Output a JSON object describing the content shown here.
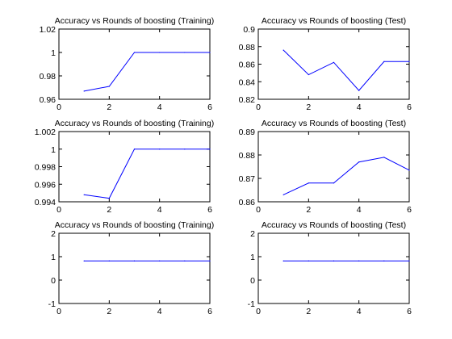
{
  "colors": {
    "line": "#0000ff",
    "axes": "#000000",
    "background": "#ffffff"
  },
  "chart_data": [
    {
      "type": "line",
      "title": "Accuracy vs Rounds of boosting (Training)",
      "x": [
        1,
        2,
        3,
        4,
        5,
        6
      ],
      "series": [
        {
          "values": [
            0.967,
            0.971,
            1.0,
            1.0,
            1.0,
            1.0
          ]
        }
      ],
      "xlim": [
        0,
        6
      ],
      "ylim": [
        0.96,
        1.02
      ],
      "xticks": [
        0,
        2,
        4,
        6
      ],
      "yticks": [
        0.96,
        0.98,
        1,
        1.02
      ],
      "xtick_labels": [
        "0",
        "2",
        "4",
        "6"
      ],
      "ytick_labels": [
        "0.96",
        "0.98",
        "1",
        "1.02"
      ],
      "grid": false
    },
    {
      "type": "line",
      "title": "Accuracy vs Rounds of boosting (Test)",
      "x": [
        1,
        2,
        3,
        4,
        5,
        6
      ],
      "series": [
        {
          "values": [
            0.876,
            0.848,
            0.862,
            0.83,
            0.863,
            0.863
          ]
        }
      ],
      "xlim": [
        0,
        6
      ],
      "ylim": [
        0.82,
        0.9
      ],
      "xticks": [
        0,
        2,
        4,
        6
      ],
      "yticks": [
        0.82,
        0.84,
        0.86,
        0.88,
        0.9
      ],
      "xtick_labels": [
        "0",
        "2",
        "4",
        "6"
      ],
      "ytick_labels": [
        "0.82",
        "0.84",
        "0.86",
        "0.88",
        "0.9"
      ],
      "grid": false
    },
    {
      "type": "line",
      "title": "Accuracy vs Rounds of boosting (Training)",
      "x": [
        1,
        2,
        3,
        4,
        5,
        6
      ],
      "series": [
        {
          "values": [
            0.9948,
            0.9944,
            1.0,
            1.0,
            1.0,
            1.0
          ]
        }
      ],
      "xlim": [
        0,
        6
      ],
      "ylim": [
        0.994,
        1.002
      ],
      "xticks": [
        0,
        2,
        4,
        6
      ],
      "yticks": [
        0.994,
        0.996,
        0.998,
        1,
        1.002
      ],
      "xtick_labels": [
        "0",
        "2",
        "4",
        "6"
      ],
      "ytick_labels": [
        "0.994",
        "0.996",
        "0.998",
        "1",
        "1.002"
      ],
      "grid": false
    },
    {
      "type": "line",
      "title": "Accuracy vs Rounds of boosting (Test)",
      "x": [
        1,
        2,
        3,
        4,
        5,
        6
      ],
      "series": [
        {
          "values": [
            0.863,
            0.868,
            0.868,
            0.877,
            0.879,
            0.8735
          ]
        }
      ],
      "xlim": [
        0,
        6
      ],
      "ylim": [
        0.86,
        0.89
      ],
      "xticks": [
        0,
        2,
        4,
        6
      ],
      "yticks": [
        0.86,
        0.87,
        0.88,
        0.89
      ],
      "xtick_labels": [
        "0",
        "2",
        "4",
        "6"
      ],
      "ytick_labels": [
        "0.86",
        "0.87",
        "0.88",
        "0.89"
      ],
      "grid": false
    },
    {
      "type": "line",
      "title": "Accuracy vs Rounds of boosting (Training)",
      "x": [
        1,
        2,
        3,
        4,
        5,
        6
      ],
      "series": [
        {
          "values": [
            0.82,
            0.82,
            0.82,
            0.82,
            0.82,
            0.82
          ]
        }
      ],
      "xlim": [
        0,
        6
      ],
      "ylim": [
        -1,
        2
      ],
      "xticks": [
        0,
        2,
        4,
        6
      ],
      "yticks": [
        -1,
        0,
        1,
        2
      ],
      "xtick_labels": [
        "0",
        "2",
        "4",
        "6"
      ],
      "ytick_labels": [
        "-1",
        "0",
        "1",
        "2"
      ],
      "grid": false
    },
    {
      "type": "line",
      "title": "Accuracy vs Rounds of boosting (Test)",
      "x": [
        1,
        2,
        3,
        4,
        5,
        6
      ],
      "series": [
        {
          "values": [
            0.82,
            0.82,
            0.82,
            0.82,
            0.82,
            0.82
          ]
        }
      ],
      "xlim": [
        0,
        6
      ],
      "ylim": [
        -1,
        2
      ],
      "xticks": [
        0,
        2,
        4,
        6
      ],
      "yticks": [
        -1,
        0,
        1,
        2
      ],
      "xtick_labels": [
        "0",
        "2",
        "4",
        "6"
      ],
      "ytick_labels": [
        "-1",
        "0",
        "1",
        "2"
      ],
      "grid": false
    }
  ]
}
